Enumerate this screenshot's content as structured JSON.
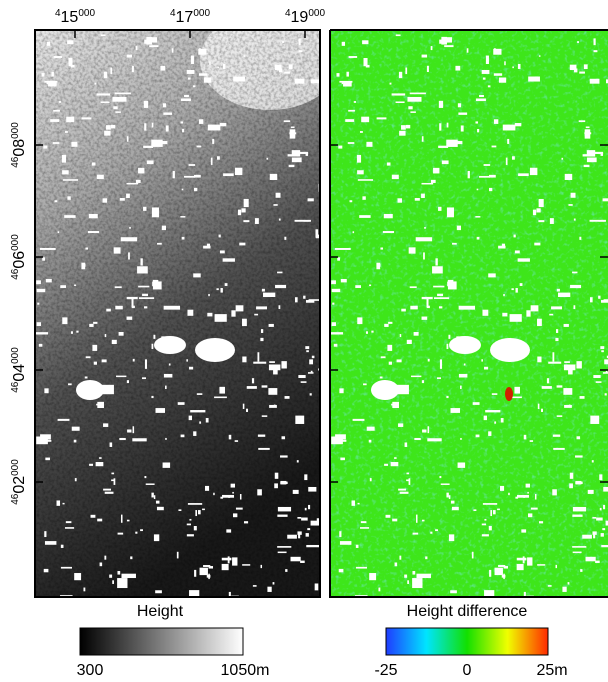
{
  "x_axis": {
    "ticks": [
      {
        "sup": "4",
        "main": "15",
        "tail": "000"
      },
      {
        "sup": "4",
        "main": "17",
        "tail": "000"
      },
      {
        "sup": "4",
        "main": "19",
        "tail": "000"
      }
    ]
  },
  "y_axis": {
    "ticks": [
      {
        "sup": "46",
        "main": "08",
        "tail": "000"
      },
      {
        "sup": "46",
        "main": "06",
        "tail": "000"
      },
      {
        "sup": "46",
        "main": "04",
        "tail": "000"
      },
      {
        "sup": "46",
        "main": "02",
        "tail": "000"
      }
    ]
  },
  "panels": [
    {
      "colorbar": {
        "title": "Height",
        "labels": [
          "300",
          "1050m"
        ]
      }
    },
    {
      "colorbar": {
        "title": "Height difference",
        "labels": [
          "-25",
          "0",
          "25m"
        ]
      }
    }
  ]
}
